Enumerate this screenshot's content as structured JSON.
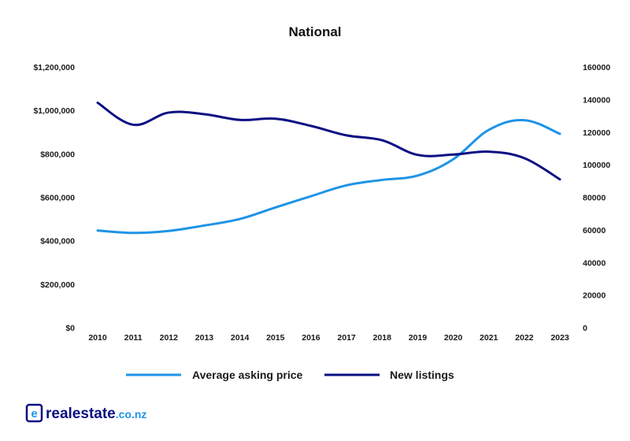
{
  "chart_data": {
    "type": "line",
    "title": "National",
    "x": [
      "2010",
      "2011",
      "2012",
      "2013",
      "2014",
      "2015",
      "2016",
      "2017",
      "2018",
      "2019",
      "2020",
      "2021",
      "2022",
      "2023"
    ],
    "y_left": {
      "ticks": [
        0,
        200000,
        400000,
        600000,
        800000,
        1000000,
        1200000
      ],
      "tick_labels": [
        "$0",
        "$200,000",
        "$400,000",
        "$600,000",
        "$800,000",
        "$1,000,000",
        "$1,200,000"
      ],
      "range": [
        0,
        1200000
      ]
    },
    "y_right": {
      "ticks": [
        0,
        20000,
        40000,
        60000,
        80000,
        100000,
        120000,
        140000,
        160000
      ],
      "tick_labels": [
        "0",
        "20000",
        "40000",
        "60000",
        "80000",
        "100000",
        "120000",
        "140000",
        "160000"
      ],
      "range": [
        0,
        160000
      ]
    },
    "series": [
      {
        "name": "Average asking price",
        "axis": "left",
        "color": "#1e94e6",
        "values": [
          447000,
          436000,
          445000,
          470000,
          500000,
          553000,
          605000,
          655000,
          680000,
          700000,
          775000,
          910000,
          955000,
          892000
        ]
      },
      {
        "name": "New listings",
        "axis": "right",
        "color": "#0b0f82",
        "values": [
          138000,
          124500,
          132000,
          131000,
          127500,
          128200,
          123800,
          118000,
          115000,
          106000,
          106200,
          108000,
          104000,
          91000
        ]
      }
    ],
    "grid": false,
    "legend_position": "bottom"
  },
  "legend": {
    "price_label": "Average asking price",
    "listings_label": "New listings"
  },
  "branding": {
    "logo_main": "realestate",
    "logo_sub": ".co.nz",
    "logo_letter": "e",
    "icon": "realestate-logo-icon",
    "brand_color": "#0b0f82",
    "accent_color": "#1e94e6"
  }
}
